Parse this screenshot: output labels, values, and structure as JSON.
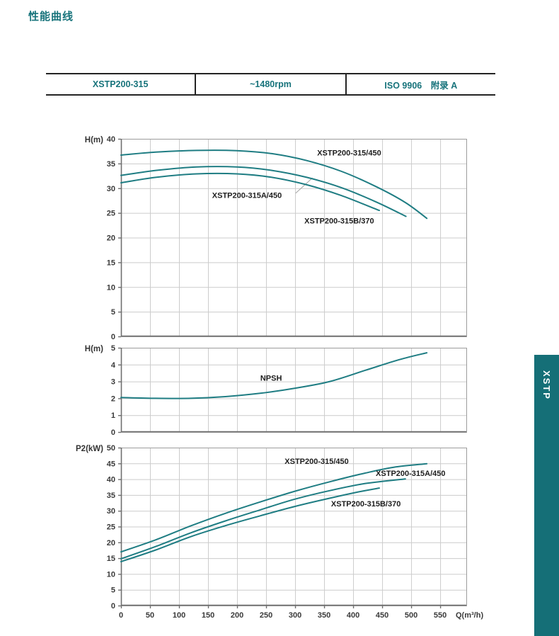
{
  "page": {
    "title": "性能曲线"
  },
  "header_table": {
    "cells": [
      "XSTP200-315",
      "~1480rpm",
      "ISO 9906　附录 A"
    ]
  },
  "side_tab": {
    "label": "XSTP"
  },
  "colors": {
    "accent": "#17737b",
    "curve": "#1f7d83",
    "grid": "#cccccc",
    "plot_border": "#9c9c9c",
    "axis_strong": "#6f6f6f",
    "tick_text": "#3a3a3a",
    "label_text": "#1d1d1d",
    "table_border": "#242424",
    "tab_bg": "#156f77",
    "leader": "#a3a3a3"
  },
  "x_axis": {
    "label": "Q(m³/h)",
    "ticks": [
      0,
      50,
      100,
      150,
      200,
      250,
      300,
      350,
      400,
      450,
      500,
      550
    ],
    "max": 595
  },
  "chart_data": [
    {
      "type": "line",
      "name": "head-curves",
      "ylabel": "H(m)",
      "ylim": [
        0,
        40
      ],
      "ystep": 5,
      "show_x_labels": false,
      "series": [
        {
          "name": "XSTP200-315/450",
          "points": [
            [
              0,
              36.7
            ],
            [
              60,
              37.3
            ],
            [
              130,
              37.65
            ],
            [
              200,
              37.6
            ],
            [
              260,
              37.0
            ],
            [
              320,
              35.6
            ],
            [
              380,
              33.4
            ],
            [
              440,
              30.3
            ],
            [
              490,
              27.1
            ],
            [
              527,
              23.9
            ]
          ]
        },
        {
          "name": "XSTP200-315A/450",
          "points": [
            [
              0,
              32.6
            ],
            [
              60,
              33.6
            ],
            [
              130,
              34.3
            ],
            [
              200,
              34.3
            ],
            [
              260,
              33.6
            ],
            [
              320,
              32.2
            ],
            [
              380,
              30.1
            ],
            [
              440,
              27.2
            ],
            [
              491,
              24.3
            ]
          ]
        },
        {
          "name": "XSTP200-315B/370",
          "points": [
            [
              0,
              31.1
            ],
            [
              60,
              32.2
            ],
            [
              130,
              32.9
            ],
            [
              200,
              32.9
            ],
            [
              260,
              32.2
            ],
            [
              320,
              30.7
            ],
            [
              380,
              28.5
            ],
            [
              445,
              25.5
            ]
          ]
        }
      ],
      "annotations": [
        {
          "text": "XSTP200-315/450",
          "q": 338,
          "v": 36.6
        },
        {
          "text": "XSTP200-315A/450",
          "q": 157,
          "v": 28.0
        },
        {
          "text": "XSTP200-315B/370",
          "q": 316,
          "v": 22.9
        }
      ],
      "leader_line": {
        "q1": 301,
        "v1": 29.0,
        "q2": 330,
        "v2": 32.1
      }
    },
    {
      "type": "line",
      "name": "npsh-curve",
      "ylabel": "H(m)",
      "ylim": [
        0,
        5
      ],
      "ystep": 1,
      "show_x_labels": false,
      "series": [
        {
          "name": "NPSH",
          "points": [
            [
              0,
              2.05
            ],
            [
              60,
              2.0
            ],
            [
              120,
              2.0
            ],
            [
              180,
              2.1
            ],
            [
              240,
              2.3
            ],
            [
              300,
              2.6
            ],
            [
              360,
              3.0
            ],
            [
              420,
              3.65
            ],
            [
              480,
              4.3
            ],
            [
              527,
              4.7
            ]
          ]
        }
      ],
      "annotations": [
        {
          "text": "NPSH",
          "q": 240,
          "v": 3.05
        }
      ]
    },
    {
      "type": "line",
      "name": "power-curves",
      "ylabel": "P2(kW)",
      "ylim": [
        0,
        50
      ],
      "ystep": 5,
      "show_x_labels": true,
      "series": [
        {
          "name": "XSTP200-315/450",
          "points": [
            [
              0,
              17.0
            ],
            [
              60,
              20.8
            ],
            [
              120,
              25.2
            ],
            [
              180,
              29.2
            ],
            [
              240,
              32.8
            ],
            [
              300,
              36.2
            ],
            [
              360,
              39.2
            ],
            [
              420,
              41.9
            ],
            [
              470,
              43.8
            ],
            [
              527,
              44.9
            ]
          ]
        },
        {
          "name": "XSTP200-315A/450",
          "points": [
            [
              0,
              14.8
            ],
            [
              60,
              18.7
            ],
            [
              120,
              23.0
            ],
            [
              180,
              26.8
            ],
            [
              240,
              30.3
            ],
            [
              300,
              33.7
            ],
            [
              360,
              36.4
            ],
            [
              420,
              38.6
            ],
            [
              490,
              40.1
            ]
          ]
        },
        {
          "name": "XSTP200-315B/370",
          "points": [
            [
              0,
              13.9
            ],
            [
              60,
              17.6
            ],
            [
              120,
              21.8
            ],
            [
              180,
              25.3
            ],
            [
              240,
              28.4
            ],
            [
              300,
              31.4
            ],
            [
              360,
              34.0
            ],
            [
              410,
              36.0
            ],
            [
              445,
              37.2
            ]
          ]
        }
      ],
      "annotations": [
        {
          "text": "XSTP200-315/450",
          "q": 282,
          "v": 44.8
        },
        {
          "text": "XSTP200-315A/450",
          "q": 439,
          "v": 41.0
        },
        {
          "text": "XSTP200-315B/370",
          "q": 362,
          "v": 31.4
        }
      ]
    }
  ]
}
